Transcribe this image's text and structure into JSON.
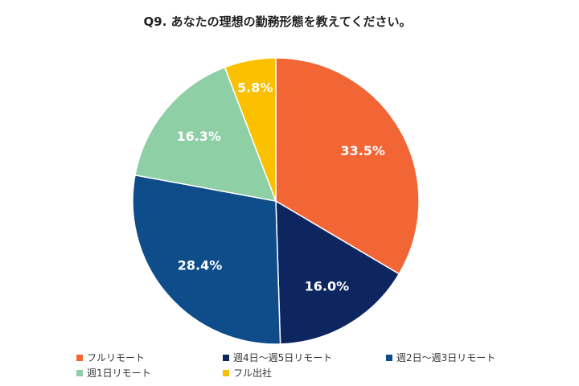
{
  "chart_data": {
    "type": "pie",
    "title": "Q9. あなたの理想の勤務形態を教えてください。",
    "categories": [
      "フルリモート",
      "週4日～週5日リモート",
      "週2日～週3日リモート",
      "週1日リモート",
      "フル出社"
    ],
    "values": [
      33.5,
      16.0,
      28.4,
      16.3,
      5.8
    ],
    "labels": [
      "33.5%",
      "16.0%",
      "28.4%",
      "16.3%",
      "5.8%"
    ],
    "colors": [
      "#F26535",
      "#0D2660",
      "#0E4C8A",
      "#8ECFA5",
      "#FBC000"
    ],
    "start_angle": "12 o'clock",
    "direction": "clockwise",
    "legend_position": "bottom"
  }
}
